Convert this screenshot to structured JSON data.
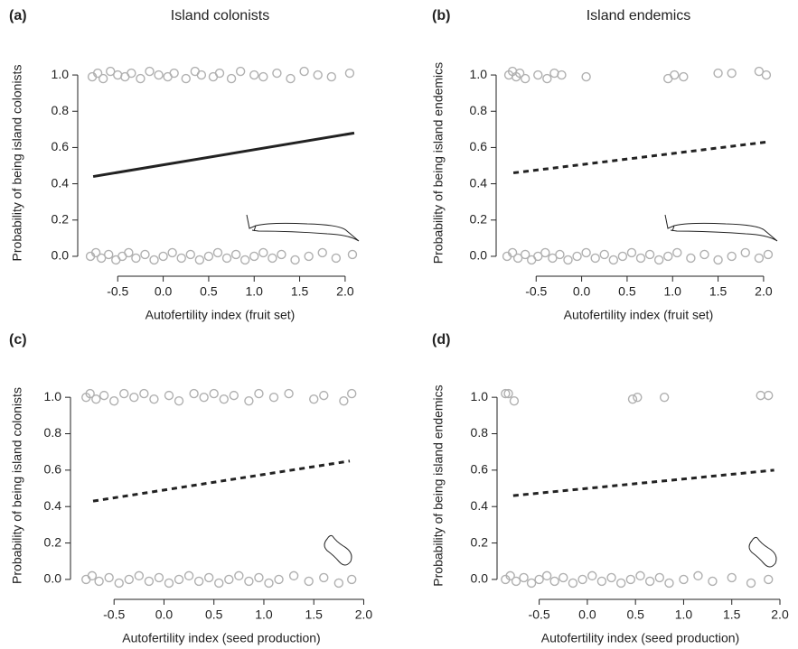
{
  "chart_data": [
    {
      "type": "scatter",
      "panel_label": "(a)",
      "title": "Island colonists",
      "x_label": "Autofertility index (fruit set)",
      "y_label": "Probability of being island colonists",
      "point_color": "#b0b0b0",
      "line_color": "#222222",
      "line_style": "solid",
      "xlim": [
        -0.9,
        2.15
      ],
      "ylim": [
        -0.05,
        1.08
      ],
      "xticks": [
        -0.5,
        {
          "value": 0,
          "label": "0.0"
        },
        0.5,
        {
          "value": 1,
          "label": "1.0"
        },
        1.5,
        {
          "value": 2,
          "label": "2.0"
        }
      ],
      "yticks": [
        {
          "value": 0,
          "label": "0.0"
        },
        0.2,
        0.4,
        0.6,
        0.8,
        {
          "value": 1,
          "label": "1.0"
        }
      ],
      "x": [
        -0.78,
        -0.72,
        -0.66,
        -0.58,
        -0.5,
        -0.42,
        -0.35,
        -0.25,
        -0.15,
        -0.05,
        0.05,
        0.12,
        0.25,
        0.35,
        0.42,
        0.55,
        0.62,
        0.75,
        0.85,
        1.0,
        1.1,
        1.25,
        1.4,
        1.55,
        1.7,
        1.85,
        2.05,
        -0.8,
        -0.74,
        -0.68,
        -0.6,
        -0.52,
        -0.45,
        -0.38,
        -0.3,
        -0.2,
        -0.1,
        0.0,
        0.1,
        0.2,
        0.3,
        0.4,
        0.5,
        0.6,
        0.7,
        0.8,
        0.9,
        1.0,
        1.1,
        1.2,
        1.3,
        1.45,
        1.6,
        1.75,
        1.9,
        2.08
      ],
      "y": [
        0.99,
        1.01,
        0.98,
        1.02,
        1.0,
        0.99,
        1.01,
        0.98,
        1.02,
        1.0,
        0.99,
        1.01,
        0.98,
        1.02,
        1.0,
        0.99,
        1.01,
        0.98,
        1.02,
        1.0,
        0.99,
        1.01,
        0.98,
        1.02,
        1.0,
        0.99,
        1.01,
        0,
        0.02,
        -0.01,
        0.01,
        -0.02,
        0,
        0.02,
        -0.01,
        0.01,
        -0.02,
        0,
        0.02,
        -0.01,
        0.01,
        -0.02,
        0,
        0.02,
        -0.01,
        0.01,
        -0.02,
        0,
        0.02,
        -0.01,
        0.01,
        -0.02,
        0,
        0.02,
        -0.01,
        0.01
      ],
      "fit": {
        "x": [
          -0.77,
          2.1
        ],
        "y": [
          0.44,
          0.68
        ]
      }
    },
    {
      "type": "scatter",
      "panel_label": "(b)",
      "title": "Island endemics",
      "x_label": "Autofertility index (fruit set)",
      "y_label": "Probability of being island endemics",
      "point_color": "#b0b0b0",
      "line_color": "#222222",
      "line_style": "dashed",
      "xlim": [
        -0.9,
        2.15
      ],
      "ylim": [
        -0.05,
        1.08
      ],
      "xticks": [
        -0.5,
        {
          "value": 0,
          "label": "0.0"
        },
        0.5,
        {
          "value": 1,
          "label": "1.0"
        },
        1.5,
        {
          "value": 2,
          "label": "2.0"
        }
      ],
      "yticks": [
        {
          "value": 0,
          "label": "0.0"
        },
        0.2,
        0.4,
        0.6,
        0.8,
        {
          "value": 1,
          "label": "1.0"
        }
      ],
      "x": [
        -0.8,
        -0.76,
        -0.72,
        -0.68,
        -0.62,
        -0.48,
        -0.38,
        -0.3,
        -0.22,
        0.05,
        0.95,
        1.02,
        1.12,
        1.5,
        1.65,
        1.95,
        2.03,
        -0.82,
        -0.76,
        -0.7,
        -0.62,
        -0.55,
        -0.48,
        -0.4,
        -0.32,
        -0.24,
        -0.15,
        -0.05,
        0.05,
        0.15,
        0.25,
        0.35,
        0.45,
        0.55,
        0.65,
        0.75,
        0.85,
        0.95,
        1.05,
        1.2,
        1.35,
        1.5,
        1.65,
        1.8,
        1.95,
        2.05
      ],
      "y": [
        1.0,
        1.02,
        0.99,
        1.01,
        0.98,
        1.0,
        0.98,
        1.01,
        1.0,
        0.99,
        0.98,
        1.0,
        0.99,
        1.01,
        1.01,
        1.02,
        1.0,
        0,
        0.02,
        -0.01,
        0.01,
        -0.02,
        0,
        0.02,
        -0.01,
        0.01,
        -0.02,
        0,
        0.02,
        -0.01,
        0.01,
        -0.02,
        0,
        0.02,
        -0.01,
        0.01,
        -0.02,
        0,
        0.02,
        -0.01,
        0.01,
        -0.02,
        0,
        0.02,
        -0.01,
        0.01
      ],
      "fit": {
        "x": [
          -0.75,
          2.03
        ],
        "y": [
          0.46,
          0.63
        ]
      }
    },
    {
      "type": "scatter",
      "panel_label": "(c)",
      "x_label": "Autofertility index (seed production)",
      "y_label": "Probability of being island colonists",
      "point_color": "#b0b0b0",
      "line_color": "#222222",
      "line_style": "dashed",
      "xlim": [
        -0.9,
        2.05
      ],
      "ylim": [
        -0.05,
        1.08
      ],
      "xticks": [
        -0.5,
        {
          "value": 0,
          "label": "0.0"
        },
        0.5,
        {
          "value": 1,
          "label": "1.0"
        },
        1.5,
        {
          "value": 2,
          "label": "2.0"
        }
      ],
      "yticks": [
        {
          "value": 0,
          "label": "0.0"
        },
        0.2,
        0.4,
        0.6,
        0.8,
        {
          "value": 1,
          "label": "1.0"
        }
      ],
      "x": [
        -0.78,
        -0.74,
        -0.68,
        -0.6,
        -0.5,
        -0.4,
        -0.3,
        -0.2,
        -0.1,
        0.05,
        0.15,
        0.3,
        0.4,
        0.5,
        0.6,
        0.7,
        0.85,
        0.95,
        1.1,
        1.25,
        1.5,
        1.6,
        1.8,
        1.88,
        -0.78,
        -0.72,
        -0.65,
        -0.55,
        -0.45,
        -0.35,
        -0.25,
        -0.15,
        -0.05,
        0.05,
        0.15,
        0.25,
        0.35,
        0.45,
        0.55,
        0.65,
        0.75,
        0.85,
        0.95,
        1.05,
        1.15,
        1.3,
        1.45,
        1.6,
        1.75,
        1.88
      ],
      "y": [
        1.0,
        1.02,
        0.99,
        1.01,
        0.98,
        1.02,
        1.0,
        1.02,
        0.99,
        1.01,
        0.98,
        1.02,
        1.0,
        1.02,
        0.99,
        1.01,
        0.98,
        1.02,
        1.0,
        1.02,
        0.99,
        1.01,
        0.98,
        1.02,
        0,
        0.02,
        -0.01,
        0.01,
        -0.02,
        0,
        0.02,
        -0.01,
        0.01,
        -0.02,
        0,
        0.02,
        -0.01,
        0.01,
        -0.02,
        0,
        0.02,
        -0.01,
        0.01,
        -0.02,
        0,
        0.02,
        -0.01,
        0.01,
        -0.02,
        0
      ],
      "fit": {
        "x": [
          -0.71,
          1.86
        ],
        "y": [
          0.43,
          0.65
        ]
      }
    },
    {
      "type": "scatter",
      "panel_label": "(d)",
      "x_label": "Autofertility index (seed production)",
      "y_label": "Probability of being island endemics",
      "point_color": "#b0b0b0",
      "line_color": "#222222",
      "line_style": "dashed",
      "xlim": [
        -0.9,
        2.0
      ],
      "ylim": [
        -0.05,
        1.08
      ],
      "xticks": [
        -0.5,
        {
          "value": 0,
          "label": "0.0"
        },
        0.5,
        {
          "value": 1,
          "label": "1.0"
        },
        1.5,
        {
          "value": 2,
          "label": "2.0"
        }
      ],
      "yticks": [
        {
          "value": 0,
          "label": "0.0"
        },
        0.2,
        0.4,
        0.6,
        0.8,
        {
          "value": 1,
          "label": "1.0"
        }
      ],
      "x": [
        -0.85,
        -0.82,
        -0.76,
        0.47,
        0.52,
        0.8,
        1.8,
        1.88,
        -0.85,
        -0.8,
        -0.74,
        -0.66,
        -0.58,
        -0.5,
        -0.42,
        -0.34,
        -0.25,
        -0.15,
        -0.05,
        0.05,
        0.15,
        0.25,
        0.35,
        0.45,
        0.55,
        0.65,
        0.75,
        0.85,
        1.0,
        1.15,
        1.3,
        1.5,
        1.7,
        1.88
      ],
      "y": [
        1.02,
        1.02,
        0.98,
        0.99,
        1.0,
        1.0,
        1.01,
        1.01,
        0,
        0.02,
        -0.01,
        0.01,
        -0.02,
        0,
        0.02,
        -0.01,
        0.01,
        -0.02,
        0,
        0.02,
        -0.01,
        0.01,
        -0.02,
        0,
        0.02,
        -0.01,
        0.01,
        -0.02,
        0,
        0.02,
        -0.01,
        0.01,
        -0.02,
        0
      ],
      "fit": {
        "x": [
          -0.77,
          1.94
        ],
        "y": [
          0.46,
          0.6
        ]
      }
    }
  ]
}
